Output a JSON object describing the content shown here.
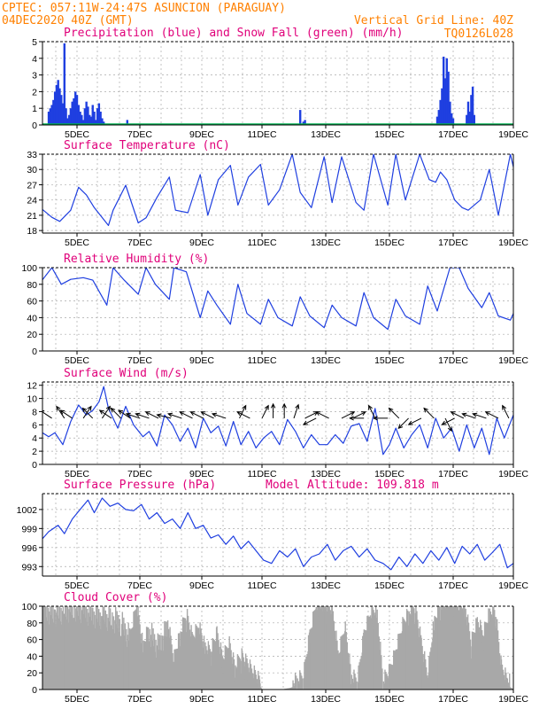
{
  "header": {
    "line1": "CPTEC:  057:11W-24:47S  ASUNCION (PARAGUAY)",
    "line2_left": "04DEC2020 40Z (GMT)",
    "line2_right": "Vertical Grid Line: 40Z",
    "code": "TQ0126L028"
  },
  "x_ticks": [
    "5DEC",
    "7DEC",
    "9DEC",
    "11DEC",
    "13DEC",
    "15DEC",
    "17DEC",
    "19DEC"
  ],
  "colors": {
    "line": "#1f3fe0",
    "bars": "#1f3fe0",
    "snow": "#00b050",
    "cloud": "#a8a8a8",
    "title": "#e0007a",
    "header": "#ff8000"
  },
  "chart_data": [
    {
      "id": "precip",
      "type": "bar",
      "title": "Precipitation (blue) and Snow Fall (green) (mm/h)",
      "ylim": [
        0,
        5
      ],
      "yticks": [
        "0",
        "1",
        "2",
        "3",
        "4",
        "5"
      ],
      "x_range_days": [
        3.83,
        19.0
      ],
      "series": [
        {
          "name": "Precipitation",
          "x": [
            4.1,
            4.15,
            4.2,
            4.25,
            4.3,
            4.35,
            4.4,
            4.45,
            4.5,
            4.55,
            4.6,
            4.65,
            4.7,
            4.75,
            4.8,
            4.85,
            4.9,
            4.95,
            5.0,
            5.05,
            5.1,
            5.15,
            5.2,
            5.25,
            5.3,
            5.35,
            5.4,
            5.45,
            5.5,
            5.55,
            5.6,
            5.65,
            5.7,
            5.75,
            5.8,
            5.85,
            6.6,
            12.2,
            12.3,
            12.35,
            16.5,
            16.55,
            16.6,
            16.65,
            16.7,
            16.75,
            16.8,
            16.85,
            16.9,
            16.95,
            17.0,
            17.45,
            17.5,
            17.55,
            17.6,
            17.65,
            17.7
          ],
          "values": [
            0.8,
            1.0,
            1.2,
            1.5,
            2.0,
            2.4,
            2.7,
            2.2,
            1.8,
            1.3,
            4.9,
            1.0,
            0.4,
            0.6,
            1.0,
            1.4,
            1.6,
            2.0,
            1.8,
            1.2,
            0.8,
            0.6,
            0.3,
            1.0,
            1.4,
            1.1,
            0.6,
            0.5,
            1.2,
            0.8,
            0.3,
            1.0,
            1.3,
            0.8,
            0.4,
            0.2,
            0.3,
            0.9,
            0.2,
            0.3,
            0.5,
            0.9,
            1.5,
            2.2,
            4.1,
            2.8,
            4.0,
            3.2,
            1.4,
            0.7,
            0.4,
            0.6,
            1.4,
            0.8,
            1.8,
            2.3,
            0.6
          ]
        },
        {
          "name": "Snow Fall",
          "x": [],
          "values": []
        }
      ]
    },
    {
      "id": "temp",
      "type": "line",
      "title": "Surface Temperature (nC)",
      "ylim": [
        17.5,
        33
      ],
      "yticks": [
        "18",
        "21",
        "24",
        "27",
        "30",
        "33"
      ],
      "x_range_days": [
        3.83,
        19.0
      ],
      "series": [
        {
          "name": "Surface Temperature",
          "x": [
            3.83,
            4.2,
            4.45,
            4.8,
            5.05,
            5.3,
            5.55,
            6.0,
            6.15,
            6.55,
            6.95,
            7.2,
            7.55,
            7.95,
            8.15,
            8.55,
            8.95,
            9.2,
            9.55,
            9.95,
            10.2,
            10.55,
            10.95,
            11.2,
            11.55,
            11.95,
            12.2,
            12.55,
            12.95,
            13.2,
            13.5,
            13.95,
            14.2,
            14.5,
            14.95,
            15.2,
            15.5,
            15.95,
            16.25,
            16.45,
            16.6,
            16.8,
            17.05,
            17.3,
            17.5,
            17.9,
            18.2,
            18.5,
            18.9,
            19.0
          ],
          "values": [
            22.5,
            20.6,
            19.8,
            22.0,
            26.5,
            25.0,
            22.5,
            19.0,
            22.0,
            26.9,
            19.5,
            20.5,
            24.5,
            28.5,
            22.0,
            21.5,
            29.0,
            21.0,
            28.0,
            30.8,
            23.0,
            28.5,
            31.0,
            23.0,
            26.0,
            33.0,
            25.5,
            22.5,
            32.5,
            23.5,
            32.5,
            23.5,
            22.0,
            33.0,
            23.0,
            33.0,
            24.0,
            33.0,
            28.0,
            27.5,
            29.5,
            28.0,
            24.0,
            22.5,
            22.0,
            24.0,
            30.0,
            21.0,
            33.0,
            30.5
          ]
        }
      ]
    },
    {
      "id": "rh",
      "type": "line",
      "title": "Relative Humidity (%)",
      "ylim": [
        0,
        100
      ],
      "yticks": [
        "0",
        "20",
        "40",
        "60",
        "80",
        "100"
      ],
      "x_range_days": [
        3.83,
        19.0
      ],
      "series": [
        {
          "name": "Relative Humidity",
          "x": [
            3.83,
            4.2,
            4.5,
            4.8,
            5.2,
            5.5,
            5.95,
            6.15,
            6.5,
            6.95,
            7.2,
            7.5,
            7.95,
            8.1,
            8.5,
            8.95,
            9.2,
            9.5,
            9.95,
            10.2,
            10.5,
            10.95,
            11.2,
            11.5,
            11.95,
            12.2,
            12.5,
            12.95,
            13.2,
            13.5,
            13.95,
            14.2,
            14.5,
            14.95,
            15.2,
            15.5,
            15.95,
            16.2,
            16.5,
            16.9,
            17.2,
            17.5,
            17.95,
            18.2,
            18.5,
            18.9,
            19.0
          ],
          "values": [
            82,
            100,
            80,
            86,
            88,
            85,
            55,
            100,
            85,
            68,
            100,
            80,
            62,
            100,
            95,
            40,
            72,
            55,
            32,
            80,
            45,
            32,
            62,
            40,
            30,
            65,
            42,
            28,
            55,
            40,
            30,
            70,
            40,
            26,
            62,
            42,
            32,
            78,
            48,
            100,
            100,
            75,
            52,
            70,
            42,
            37,
            45
          ]
        }
      ]
    },
    {
      "id": "wind",
      "type": "line",
      "title": "Surface Wind (m/s)",
      "ylim": [
        0,
        12.5
      ],
      "yticks": [
        "0",
        "2",
        "4",
        "6",
        "8",
        "10",
        "12"
      ],
      "x_range_days": [
        3.83,
        19.0
      ],
      "series": [
        {
          "name": "Wind speed",
          "x": [
            3.83,
            4.1,
            4.3,
            4.55,
            4.8,
            5.05,
            5.3,
            5.5,
            5.7,
            5.85,
            6.0,
            6.3,
            6.55,
            6.8,
            7.1,
            7.3,
            7.55,
            7.8,
            8.05,
            8.3,
            8.55,
            8.8,
            9.05,
            9.3,
            9.55,
            9.8,
            10.05,
            10.3,
            10.55,
            10.8,
            11.05,
            11.3,
            11.55,
            11.8,
            12.05,
            12.3,
            12.55,
            12.8,
            13.05,
            13.3,
            13.55,
            13.8,
            14.05,
            14.3,
            14.55,
            14.8,
            15.0,
            15.2,
            15.45,
            15.7,
            15.95,
            16.2,
            16.45,
            16.7,
            16.95,
            17.2,
            17.45,
            17.7,
            17.95,
            18.2,
            18.45,
            18.7,
            19.0
          ],
          "values": [
            5.0,
            4.2,
            4.8,
            3.0,
            6.5,
            9.0,
            7.5,
            8.2,
            9.5,
            11.8,
            8.5,
            5.5,
            8.8,
            6.0,
            4.2,
            5.0,
            2.8,
            7.5,
            6.0,
            3.5,
            5.5,
            2.5,
            7.0,
            4.8,
            5.8,
            2.8,
            6.5,
            3.0,
            5.0,
            2.5,
            4.0,
            5.0,
            3.0,
            6.8,
            5.0,
            2.5,
            4.5,
            3.0,
            3.0,
            4.5,
            3.2,
            5.8,
            6.2,
            3.5,
            8.5,
            1.5,
            3.0,
            5.5,
            2.5,
            4.5,
            6.0,
            2.5,
            7.0,
            4.0,
            5.5,
            2.0,
            6.0,
            2.5,
            5.5,
            1.5,
            7.0,
            4.0,
            7.5
          ]
        }
      ],
      "vectors": {
        "x": [
          4.2,
          4.6,
          4.85,
          5.2,
          5.5,
          5.8,
          6.1,
          6.4,
          6.7,
          7.0,
          7.3,
          7.6,
          8.0,
          8.35,
          8.7,
          9.05,
          9.4,
          9.8,
          10.25,
          10.6,
          11.0,
          11.35,
          11.7,
          12.0,
          12.35,
          12.7,
          13.1,
          13.5,
          13.85,
          14.2,
          14.55,
          14.95,
          15.3,
          15.6,
          16.0,
          16.4,
          16.75,
          17.05,
          17.35,
          17.75,
          18.1,
          18.5,
          18.85
        ],
        "u": [
          -3,
          -2,
          -3,
          2,
          -2,
          2,
          -3,
          -2,
          -3,
          -3,
          -3,
          -2,
          -4,
          -3,
          -2,
          -2,
          -2,
          -3,
          1,
          -2,
          1,
          0,
          0,
          1,
          2,
          -2,
          -2,
          2,
          2,
          -3,
          -1,
          -2,
          -2,
          -1,
          -2,
          -2,
          1,
          -2,
          -2,
          -3,
          -3,
          -2,
          -1
        ],
        "v": [
          -2,
          -3,
          -2,
          -3,
          -2,
          -3,
          -2,
          -2,
          -2,
          -1,
          -1,
          -1,
          -1,
          -1,
          -1,
          -1,
          -1,
          -1,
          -2,
          -1,
          -2,
          -2,
          -2,
          -3,
          -1,
          1,
          -1,
          -1,
          -1,
          0,
          -2,
          0,
          -2,
          1,
          1,
          -2,
          2,
          1,
          -1,
          -1,
          -1,
          -1,
          -2
        ]
      }
    },
    {
      "id": "pressure",
      "type": "line",
      "title": "Surface Pressure (hPa)",
      "model_altitude": "Model Altitude: 109.818 m",
      "ylim": [
        991.5,
        1004.5
      ],
      "yticks": [
        "993",
        "996",
        "999",
        "1002"
      ],
      "x_range_days": [
        3.83,
        19.0
      ],
      "series": [
        {
          "name": "Surface Pressure",
          "x": [
            3.83,
            4.1,
            4.4,
            4.6,
            4.85,
            5.1,
            5.35,
            5.55,
            5.8,
            6.05,
            6.3,
            6.55,
            6.8,
            7.05,
            7.3,
            7.55,
            7.8,
            8.05,
            8.3,
            8.55,
            8.8,
            9.05,
            9.3,
            9.55,
            9.8,
            10.05,
            10.3,
            10.55,
            10.8,
            11.05,
            11.3,
            11.55,
            11.8,
            12.05,
            12.3,
            12.55,
            12.8,
            13.05,
            13.3,
            13.55,
            13.8,
            14.05,
            14.3,
            14.55,
            14.8,
            15.05,
            15.3,
            15.55,
            15.8,
            16.05,
            16.3,
            16.55,
            16.8,
            17.05,
            17.3,
            17.55,
            17.8,
            18.05,
            18.3,
            18.55,
            18.8,
            19.0
          ],
          "values": [
            997.0,
            998.5,
            999.5,
            998.2,
            1000.5,
            1002.0,
            1003.5,
            1001.5,
            1003.8,
            1002.5,
            1003.0,
            1002.0,
            1001.8,
            1002.8,
            1000.5,
            1001.5,
            999.8,
            1000.5,
            999.0,
            1001.5,
            999.0,
            999.5,
            997.5,
            998.0,
            996.5,
            997.8,
            995.8,
            997.0,
            995.5,
            994.0,
            993.5,
            995.5,
            994.5,
            995.8,
            993.0,
            994.5,
            995.0,
            996.5,
            994.0,
            995.5,
            996.2,
            994.5,
            995.8,
            994.0,
            993.5,
            992.5,
            994.5,
            993.0,
            995.0,
            993.5,
            995.5,
            994.0,
            996.0,
            993.5,
            996.2,
            995.0,
            996.5,
            994.0,
            995.2,
            996.5,
            992.8,
            993.5
          ]
        }
      ]
    },
    {
      "id": "cloud",
      "type": "area",
      "title": "Cloud Cover (%)",
      "ylim": [
        0,
        100
      ],
      "yticks": [
        "0",
        "20",
        "40",
        "60",
        "80",
        "100"
      ],
      "x_range_days": [
        3.83,
        19.0
      ],
      "series": [
        {
          "name": "Cloud Cover",
          "x": [
            3.83,
            4.0,
            4.3,
            4.6,
            4.9,
            5.2,
            5.5,
            5.8,
            6.1,
            6.4,
            6.7,
            6.9,
            7.1,
            7.3,
            7.6,
            7.9,
            8.1,
            8.3,
            8.5,
            8.7,
            8.9,
            9.1,
            9.3,
            9.5,
            9.7,
            9.9,
            10.1,
            10.3,
            10.5,
            10.7,
            10.9,
            11.0,
            11.3,
            11.6,
            11.9,
            12.1,
            12.3,
            12.5,
            12.7,
            12.9,
            13.0,
            13.2,
            13.4,
            13.6,
            13.8,
            14.0,
            14.2,
            14.4,
            14.6,
            14.8,
            15.0,
            15.2,
            15.4,
            15.6,
            15.8,
            16.0,
            16.2,
            16.4,
            16.6,
            16.8,
            17.0,
            17.2,
            17.4,
            17.6,
            17.8,
            18.0,
            18.2,
            18.4,
            18.6,
            18.8,
            19.0
          ],
          "values": [
            100,
            95,
            92,
            95,
            98,
            95,
            90,
            88,
            85,
            80,
            60,
            95,
            45,
            70,
            50,
            75,
            30,
            60,
            85,
            55,
            70,
            45,
            40,
            60,
            30,
            50,
            20,
            35,
            25,
            15,
            5,
            0,
            0,
            0,
            2,
            5,
            10,
            60,
            95,
            98,
            95,
            90,
            35,
            70,
            10,
            5,
            60,
            85,
            90,
            5,
            15,
            40,
            70,
            85,
            95,
            50,
            10,
            75,
            95,
            98,
            100,
            95,
            92,
            50,
            75,
            60,
            85,
            88,
            20,
            5,
            0
          ]
        }
      ]
    }
  ]
}
